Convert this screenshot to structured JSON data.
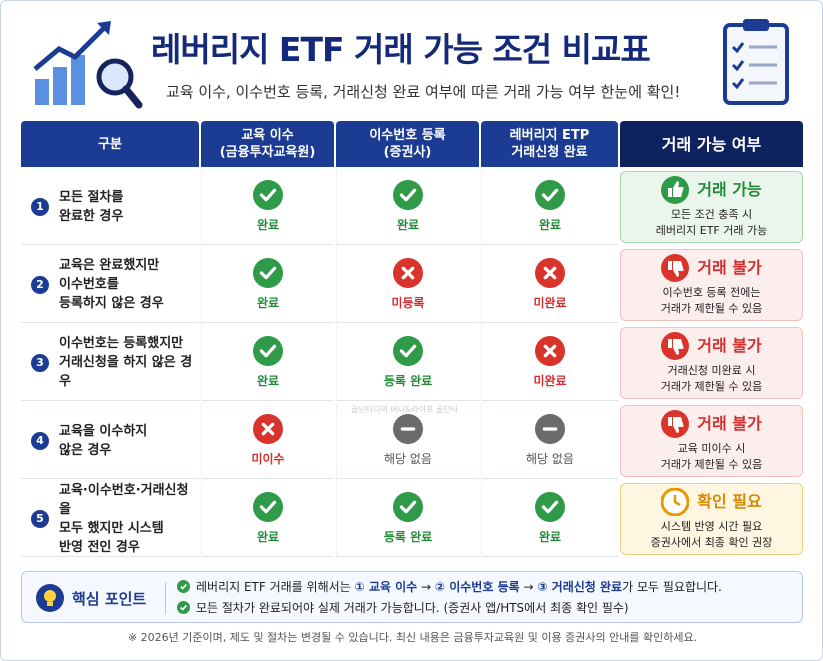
{
  "header": {
    "title": "레버리지 ETF 거래 가능 조건 비교표",
    "subtitle": "교육 이수, 이수번호 등록, 거래신청 완료 여부에 따른 거래 가능 여부 한눈에 확인!"
  },
  "table": {
    "headers": [
      [
        "구분"
      ],
      [
        "교육 이수",
        "(금융투자교육원)"
      ],
      [
        "이수번호 등록",
        "(증권사)"
      ],
      [
        "레버리지 ETP",
        "거래신청 완료"
      ],
      [
        "거래 가능 여부"
      ]
    ],
    "rows": [
      {
        "num": "1",
        "case": [
          "모든 절차를",
          "완료한 경우"
        ],
        "cells": [
          {
            "icon": "check",
            "status": "완료"
          },
          {
            "icon": "check",
            "status": "완료"
          },
          {
            "icon": "check",
            "status": "완료"
          }
        ],
        "result": {
          "kind": "ok",
          "title": "거래 가능",
          "detail": [
            "모든 조건 충족 시",
            "레버리지 ETF 거래 가능"
          ]
        }
      },
      {
        "num": "2",
        "case": [
          "교육은 완료했지만",
          "이수번호를",
          "등록하지 않은 경우"
        ],
        "cells": [
          {
            "icon": "check",
            "status": "완료"
          },
          {
            "icon": "x",
            "status": "미등록"
          },
          {
            "icon": "x",
            "status": "미완료"
          }
        ],
        "result": {
          "kind": "no",
          "title": "거래 불가",
          "detail": [
            "이수번호 등록 전에는",
            "거래가 제한될 수 있음"
          ]
        }
      },
      {
        "num": "3",
        "case": [
          "이수번호는 등록했지만",
          "거래신청을 하지 않은 경우"
        ],
        "cells": [
          {
            "icon": "check",
            "status": "완료"
          },
          {
            "icon": "check",
            "status": "등록 완료"
          },
          {
            "icon": "x",
            "status": "미완료"
          }
        ],
        "result": {
          "kind": "no",
          "title": "거래 불가",
          "detail": [
            "거래신청 미완료 시",
            "거래가 제한될 수 있음"
          ]
        }
      },
      {
        "num": "4",
        "case": [
          "교육을 이수하지",
          "않은 경우"
        ],
        "cells": [
          {
            "icon": "x",
            "status": "미이수"
          },
          {
            "icon": "dash",
            "status": "해당 없음"
          },
          {
            "icon": "dash",
            "status": "해당 없음"
          }
        ],
        "result": {
          "kind": "no",
          "title": "거래 불가",
          "detail": [
            "교육 미이수 시",
            "거래가 제한될 수 있음"
          ]
        }
      },
      {
        "num": "5",
        "case": [
          "교육·이수번호·거래신청을",
          "모두 했지만 시스템",
          "반영 전인 경우"
        ],
        "cells": [
          {
            "icon": "check",
            "status": "완료"
          },
          {
            "icon": "check",
            "status": "등록 완료"
          },
          {
            "icon": "check",
            "status": "완료"
          }
        ],
        "result": {
          "kind": "wait",
          "title": "확인 필요",
          "detail": [
            "시스템 반영 시간 필요",
            "증권사에서 최종 확인 권장"
          ]
        }
      }
    ],
    "watermark": "골단타디의 머니&라이프 골단타"
  },
  "key_points": {
    "label": "핵심 포인트",
    "lines": [
      [
        {
          "text": "레버리지 ETF 거래를 위해서는 ",
          "em": false
        },
        {
          "text": "① 교육 이수",
          "em": true
        },
        {
          "text": " → ",
          "em": false
        },
        {
          "text": "② 이수번호 등록",
          "em": true
        },
        {
          "text": " → ",
          "em": false
        },
        {
          "text": "③ 거래신청 완료",
          "em": true
        },
        {
          "text": "가 모두 필요합니다.",
          "em": false
        }
      ],
      [
        {
          "text": "모든 절차가 완료되어야 실제 거래가 가능합니다. (증권사 앱/HTS에서 최종 확인 필수)",
          "em": false
        }
      ]
    ]
  },
  "footnote": "※ 2026년 기준이며, 제도 및 절차는 변경될 수 있습니다. 최신 내용은 금융투자교육원 및 이용 증권사의 안내를 확인하세요."
}
